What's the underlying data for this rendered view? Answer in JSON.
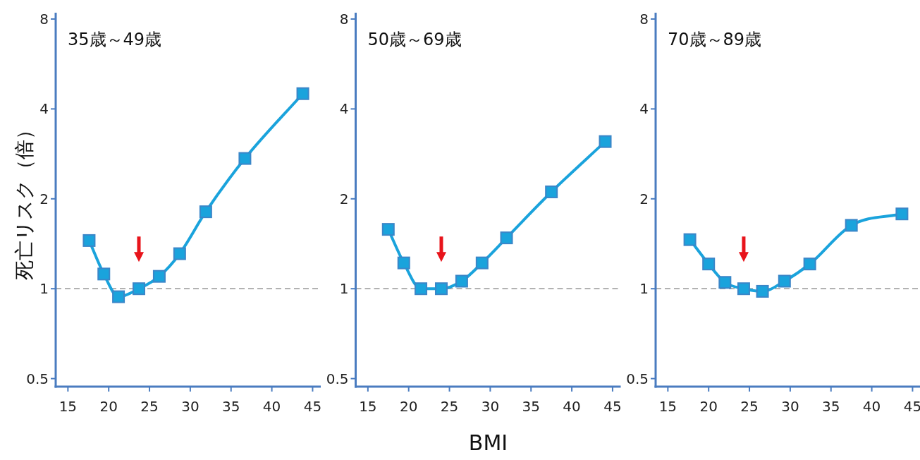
{
  "chart_data": [
    {
      "type": "line",
      "title": "35歳～49歳",
      "ylabel": "死亡リスク（倍）",
      "color": "#1aa3dc",
      "marker": "square",
      "log": "y",
      "x": [
        17.6,
        19.4,
        21.2,
        23.7,
        26.2,
        28.7,
        31.9,
        36.7,
        43.8
      ],
      "values": [
        1.45,
        1.12,
        0.94,
        1.0,
        1.1,
        1.31,
        1.81,
        2.73,
        4.5
      ],
      "xlim": [
        13.5,
        46
      ],
      "ylim": [
        0.47,
        8.4
      ],
      "xticks": [
        15,
        20,
        25,
        30,
        35,
        40,
        45
      ],
      "yticks": [
        0.5,
        1,
        2,
        4,
        8
      ],
      "ref_lines": [
        {
          "axis": "y",
          "value": 1,
          "color": "#808080",
          "line_style": "dashed"
        }
      ]
    },
    {
      "type": "line",
      "title": "50歳～69歳",
      "xlabel": "BMI",
      "color": "#1aa3dc",
      "marker": "square",
      "log": "y",
      "x": [
        17.5,
        19.4,
        21.5,
        24.0,
        26.5,
        29.0,
        32.0,
        37.5,
        44.1
      ],
      "values": [
        1.58,
        1.22,
        1.0,
        1.0,
        1.06,
        1.22,
        1.48,
        2.11,
        3.11
      ],
      "xlim": [
        13.5,
        46
      ],
      "ylim": [
        0.47,
        8.4
      ],
      "xticks": [
        15,
        20,
        25,
        30,
        35,
        40,
        45
      ],
      "yticks": [
        0.5,
        1,
        2,
        4,
        8
      ],
      "ref_lines": [
        {
          "axis": "y",
          "value": 1,
          "color": "#808080",
          "line_style": "dashed"
        }
      ]
    },
    {
      "type": "line",
      "title": "70歳～89歳",
      "color": "#1aa3dc",
      "marker": "square",
      "log": "y",
      "x": [
        17.7,
        20.0,
        22.0,
        24.3,
        26.6,
        29.3,
        32.4,
        37.5,
        43.7
      ],
      "values": [
        1.46,
        1.21,
        1.05,
        1.0,
        0.98,
        1.06,
        1.21,
        1.63,
        1.78
      ],
      "xlim": [
        13.5,
        46
      ],
      "ylim": [
        0.47,
        8.4
      ],
      "xticks": [
        15,
        20,
        25,
        30,
        35,
        40,
        45
      ],
      "yticks": [
        0.5,
        1,
        2,
        4,
        8
      ],
      "ref_lines": [
        {
          "axis": "y",
          "value": 1,
          "color": "#808080",
          "line_style": "dashed"
        }
      ]
    }
  ]
}
